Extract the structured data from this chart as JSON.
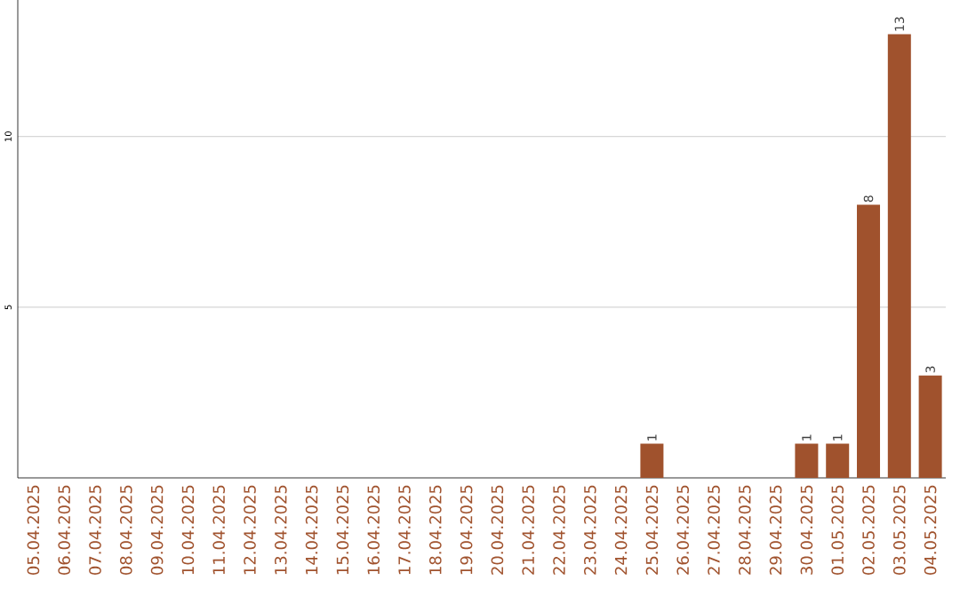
{
  "chart_data": {
    "type": "bar",
    "categories": [
      "05.04.2025",
      "06.04.2025",
      "07.04.2025",
      "08.04.2025",
      "09.04.2025",
      "10.04.2025",
      "11.04.2025",
      "12.04.2025",
      "13.04.2025",
      "14.04.2025",
      "15.04.2025",
      "16.04.2025",
      "17.04.2025",
      "18.04.2025",
      "19.04.2025",
      "20.04.2025",
      "21.04.2025",
      "22.04.2025",
      "23.04.2025",
      "24.04.2025",
      "25.04.2025",
      "26.04.2025",
      "27.04.2025",
      "28.04.2025",
      "29.04.2025",
      "30.04.2025",
      "01.05.2025",
      "02.05.2025",
      "03.05.2025",
      "04.05.2025"
    ],
    "values": [
      0,
      0,
      0,
      0,
      0,
      0,
      0,
      0,
      0,
      0,
      0,
      0,
      0,
      0,
      0,
      0,
      0,
      0,
      0,
      0,
      1,
      0,
      0,
      0,
      0,
      1,
      1,
      8,
      13,
      3
    ],
    "value_labels": [
      null,
      null,
      null,
      null,
      null,
      null,
      null,
      null,
      null,
      null,
      null,
      null,
      null,
      null,
      null,
      null,
      null,
      null,
      null,
      null,
      "1",
      null,
      null,
      null,
      null,
      "1",
      "1",
      "8",
      "13",
      "3"
    ],
    "color": "#a0522d",
    "ylim": [
      0,
      14
    ],
    "yticks": [
      5,
      10
    ],
    "grid": "y"
  }
}
